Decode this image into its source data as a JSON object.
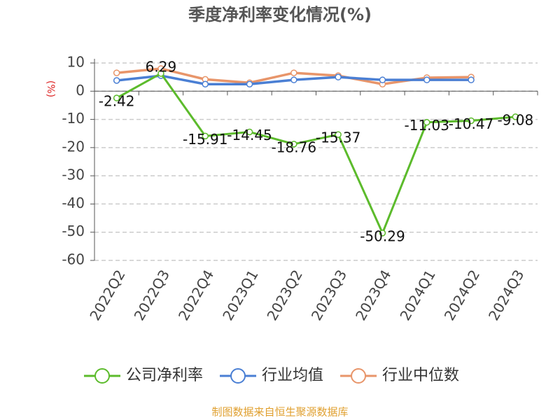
{
  "chart_data": {
    "type": "line",
    "title": "季度净利率变化情况(%)",
    "y_label": "(%)",
    "categories": [
      "2022Q2",
      "2022Q3",
      "2022Q4",
      "2023Q1",
      "2023Q2",
      "2023Q3",
      "2023Q4",
      "2024Q1",
      "2024Q2",
      "2024Q3"
    ],
    "series": [
      {
        "name": "公司净利率",
        "color": "#5cbb2c",
        "values": [
          -2.42,
          6.29,
          -15.91,
          -14.45,
          -18.76,
          -15.37,
          -50.29,
          -11.03,
          -10.47,
          -9.08
        ],
        "data_labels": true
      },
      {
        "name": "行业均值",
        "color": "#4a7fd4",
        "values": [
          3.8,
          5.5,
          2.5,
          2.5,
          4,
          5,
          4,
          4,
          4,
          null
        ]
      },
      {
        "name": "行业中位数",
        "color": "#e8956a",
        "values": [
          6.5,
          8,
          4.2,
          3,
          6.5,
          5.5,
          2.5,
          4.8,
          5,
          null
        ]
      }
    ],
    "ylim": [
      -60,
      10
    ],
    "yticks": [
      -60,
      -50,
      -40,
      -30,
      -20,
      -10,
      0,
      10
    ],
    "grid": true,
    "legend": "bottom",
    "source": "制图数据来自恒生聚源数据库"
  }
}
